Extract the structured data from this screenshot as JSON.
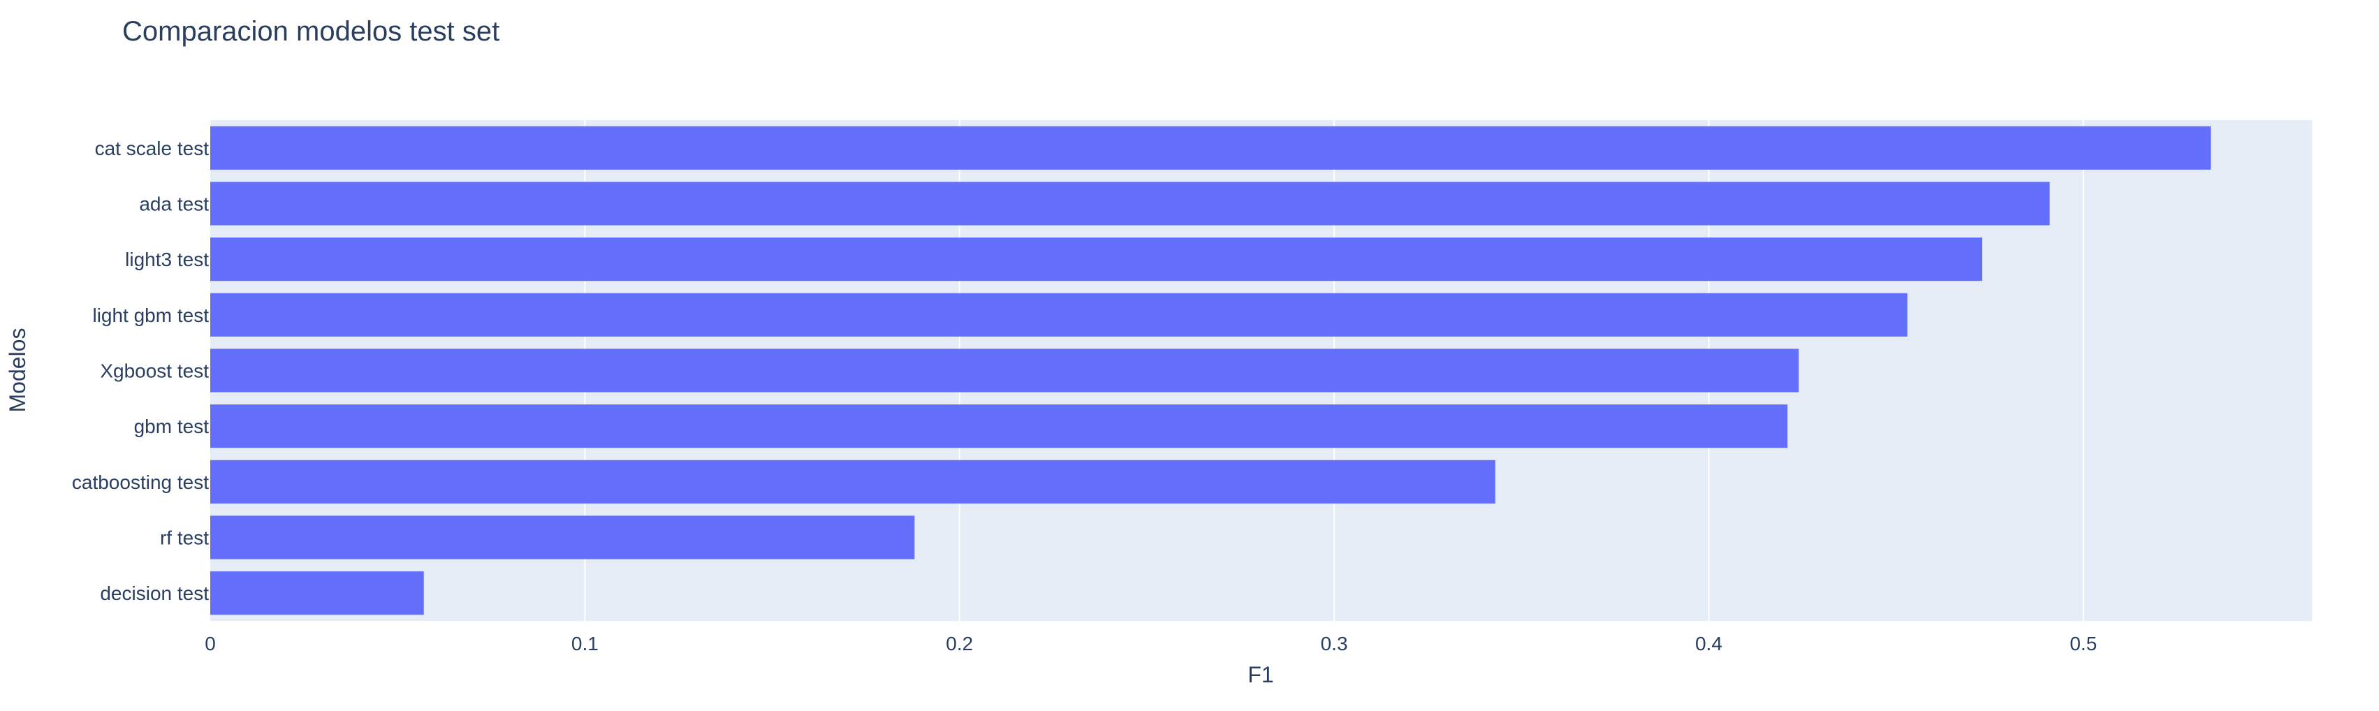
{
  "chart_data": {
    "type": "bar",
    "orientation": "horizontal",
    "title": "Comparacion modelos test set",
    "xlabel": "F1",
    "ylabel": "Modelos",
    "categories": [
      "cat scale test",
      "ada test",
      "light3 test",
      "light gbm test",
      "Xgboost test",
      "gbm test",
      "catboosting test",
      "rf test",
      "decision test"
    ],
    "values": [
      0.534,
      0.491,
      0.473,
      0.453,
      0.424,
      0.421,
      0.343,
      0.188,
      0.057
    ],
    "xlim": [
      0,
      0.561
    ],
    "xticks": [
      0,
      0.1,
      0.2,
      0.3,
      0.4,
      0.5
    ],
    "xtick_labels": [
      "0",
      "0.1",
      "0.2",
      "0.3",
      "0.4",
      "0.5"
    ],
    "grid": true,
    "legend": false,
    "colors": {
      "bar": "#636efa",
      "plot_bg": "#e5ecf6",
      "text": "#2a3f5f",
      "grid": "#ffffff"
    }
  }
}
